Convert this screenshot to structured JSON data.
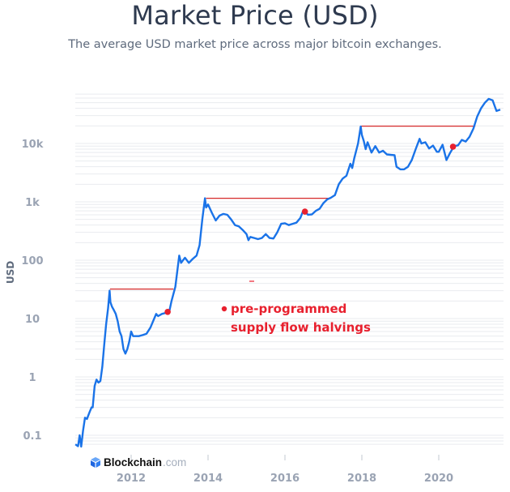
{
  "header": {
    "title": "Market Price (USD)",
    "subtitle": "The average USD market price across major bitcoin exchanges."
  },
  "branding": {
    "logo_name": "Blockchain",
    "logo_suffix": ".com"
  },
  "chart_data": {
    "type": "line",
    "title": "Market Price (USD)",
    "subtitle": "The average USD market price across major bitcoin exchanges.",
    "xlabel": "",
    "ylabel": "USD",
    "yscale": "log",
    "ylim": [
      0.07,
      70000
    ],
    "xlim": [
      2010.55,
      2021.7
    ],
    "grid": true,
    "x_ticks": [
      2012,
      2014,
      2016,
      2018,
      2020
    ],
    "x_tick_labels": [
      "2012",
      "2014",
      "2016",
      "2018",
      "2020"
    ],
    "y_ticks": [
      0.1,
      1,
      10,
      100,
      1000,
      10000
    ],
    "y_tick_labels": [
      "0.1",
      "1",
      "10",
      "100",
      "1k",
      "10k"
    ],
    "colors": {
      "line": "#1a73e8",
      "annotation": "#e8202e",
      "grid": "#e9ebef"
    },
    "series": [
      {
        "name": "Market Price (USD)",
        "points": [
          [
            2010.55,
            0.07
          ],
          [
            2010.62,
            0.065
          ],
          [
            2010.66,
            0.1
          ],
          [
            2010.7,
            0.06
          ],
          [
            2010.75,
            0.12
          ],
          [
            2010.8,
            0.2
          ],
          [
            2010.85,
            0.19
          ],
          [
            2010.92,
            0.25
          ],
          [
            2010.97,
            0.3
          ],
          [
            2011.0,
            0.3
          ],
          [
            2011.05,
            0.7
          ],
          [
            2011.1,
            0.9
          ],
          [
            2011.15,
            0.8
          ],
          [
            2011.2,
            0.85
          ],
          [
            2011.25,
            1.5
          ],
          [
            2011.3,
            3.5
          ],
          [
            2011.35,
            8
          ],
          [
            2011.4,
            15
          ],
          [
            2011.44,
            30
          ],
          [
            2011.46,
            19
          ],
          [
            2011.5,
            16
          ],
          [
            2011.55,
            14
          ],
          [
            2011.6,
            12
          ],
          [
            2011.65,
            9
          ],
          [
            2011.7,
            6
          ],
          [
            2011.75,
            5
          ],
          [
            2011.8,
            3
          ],
          [
            2011.85,
            2.5
          ],
          [
            2011.9,
            3
          ],
          [
            2011.95,
            4
          ],
          [
            2012.0,
            6
          ],
          [
            2012.05,
            5
          ],
          [
            2012.1,
            5
          ],
          [
            2012.2,
            5
          ],
          [
            2012.3,
            5.2
          ],
          [
            2012.4,
            5.5
          ],
          [
            2012.5,
            7
          ],
          [
            2012.6,
            10
          ],
          [
            2012.65,
            12
          ],
          [
            2012.7,
            11
          ],
          [
            2012.8,
            12
          ],
          [
            2012.9,
            12.5
          ],
          [
            2013.0,
            14
          ],
          [
            2013.05,
            20
          ],
          [
            2013.15,
            35
          ],
          [
            2013.25,
            120
          ],
          [
            2013.3,
            90
          ],
          [
            2013.35,
            100
          ],
          [
            2013.4,
            110
          ],
          [
            2013.5,
            90
          ],
          [
            2013.6,
            105
          ],
          [
            2013.7,
            120
          ],
          [
            2013.78,
            180
          ],
          [
            2013.85,
            500
          ],
          [
            2013.92,
            1150
          ],
          [
            2013.95,
            800
          ],
          [
            2014.0,
            900
          ],
          [
            2014.1,
            650
          ],
          [
            2014.2,
            480
          ],
          [
            2014.3,
            580
          ],
          [
            2014.4,
            620
          ],
          [
            2014.5,
            600
          ],
          [
            2014.6,
            500
          ],
          [
            2014.7,
            400
          ],
          [
            2014.8,
            380
          ],
          [
            2014.9,
            330
          ],
          [
            2015.0,
            280
          ],
          [
            2015.05,
            220
          ],
          [
            2015.1,
            250
          ],
          [
            2015.2,
            240
          ],
          [
            2015.3,
            230
          ],
          [
            2015.4,
            240
          ],
          [
            2015.5,
            280
          ],
          [
            2015.6,
            240
          ],
          [
            2015.7,
            235
          ],
          [
            2015.8,
            300
          ],
          [
            2015.9,
            420
          ],
          [
            2016.0,
            430
          ],
          [
            2016.1,
            400
          ],
          [
            2016.2,
            420
          ],
          [
            2016.3,
            440
          ],
          [
            2016.4,
            530
          ],
          [
            2016.48,
            720
          ],
          [
            2016.55,
            650
          ],
          [
            2016.6,
            600
          ],
          [
            2016.7,
            610
          ],
          [
            2016.8,
            700
          ],
          [
            2016.9,
            760
          ],
          [
            2017.0,
            950
          ],
          [
            2017.1,
            1100
          ],
          [
            2017.2,
            1180
          ],
          [
            2017.3,
            1300
          ],
          [
            2017.4,
            2000
          ],
          [
            2017.5,
            2500
          ],
          [
            2017.6,
            2800
          ],
          [
            2017.7,
            4500
          ],
          [
            2017.75,
            3800
          ],
          [
            2017.8,
            5500
          ],
          [
            2017.9,
            10000
          ],
          [
            2017.97,
            19500
          ],
          [
            2018.0,
            14000
          ],
          [
            2018.05,
            11000
          ],
          [
            2018.1,
            8000
          ],
          [
            2018.15,
            10500
          ],
          [
            2018.25,
            7000
          ],
          [
            2018.35,
            9000
          ],
          [
            2018.45,
            7000
          ],
          [
            2018.55,
            7500
          ],
          [
            2018.65,
            6500
          ],
          [
            2018.75,
            6400
          ],
          [
            2018.85,
            6300
          ],
          [
            2018.9,
            4000
          ],
          [
            2019.0,
            3600
          ],
          [
            2019.1,
            3600
          ],
          [
            2019.2,
            4000
          ],
          [
            2019.3,
            5200
          ],
          [
            2019.4,
            8000
          ],
          [
            2019.5,
            12000
          ],
          [
            2019.55,
            10000
          ],
          [
            2019.65,
            10500
          ],
          [
            2019.75,
            8200
          ],
          [
            2019.85,
            9200
          ],
          [
            2019.95,
            7200
          ],
          [
            2020.0,
            7200
          ],
          [
            2020.1,
            9500
          ],
          [
            2020.2,
            5200
          ],
          [
            2020.3,
            7000
          ],
          [
            2020.4,
            9000
          ],
          [
            2020.5,
            9300
          ],
          [
            2020.6,
            11500
          ],
          [
            2020.7,
            10800
          ],
          [
            2020.8,
            13000
          ],
          [
            2020.9,
            18000
          ],
          [
            2021.0,
            29000
          ],
          [
            2021.1,
            40000
          ],
          [
            2021.2,
            50000
          ],
          [
            2021.3,
            58000
          ],
          [
            2021.4,
            55000
          ],
          [
            2021.5,
            36000
          ],
          [
            2021.6,
            38000
          ]
        ]
      }
    ],
    "halvings": [
      {
        "date": 2012.95,
        "price": 13
      },
      {
        "date": 2016.52,
        "price": 680
      },
      {
        "date": 2020.37,
        "price": 8800
      }
    ],
    "previous_ath_lines": [
      {
        "price": 32,
        "from": 2011.45,
        "to": 2013.1
      },
      {
        "price": 1150,
        "from": 2013.95,
        "to": 2017.2
      },
      {
        "price": 19800,
        "from": 2017.97,
        "to": 2020.95
      }
    ],
    "annotations": [
      {
        "text_line1": "pre-programmed",
        "text_line2": "supply flow halvings",
        "marker": "red-dot"
      }
    ]
  }
}
